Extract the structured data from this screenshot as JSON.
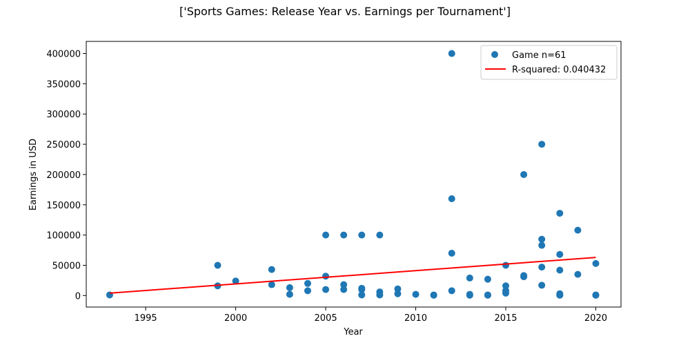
{
  "chart_data": {
    "type": "scatter",
    "title": "['Sports Games: Release Year vs. Earnings per Tournament']",
    "xlabel": "Year",
    "ylabel": "Earnings in USD",
    "xlim": [
      1991.7,
      2021.4
    ],
    "ylim": [
      -19000,
      420000
    ],
    "xticks": [
      1995,
      2000,
      2005,
      2010,
      2015,
      2020
    ],
    "yticks": [
      0,
      50000,
      100000,
      150000,
      200000,
      250000,
      300000,
      350000,
      400000
    ],
    "grid": false,
    "legend_position": "top-right",
    "point_color": "#1f77b4",
    "line_color": "#ff0000",
    "series": [
      {
        "name": "Game n=61",
        "kind": "scatter",
        "points": [
          [
            1993,
            1000
          ],
          [
            1999,
            50000
          ],
          [
            1999,
            16000
          ],
          [
            2000,
            24000
          ],
          [
            2002,
            43000
          ],
          [
            2002,
            18000
          ],
          [
            2003,
            13000
          ],
          [
            2003,
            2000
          ],
          [
            2004,
            20000
          ],
          [
            2004,
            8000
          ],
          [
            2005,
            100000
          ],
          [
            2005,
            32000
          ],
          [
            2005,
            10000
          ],
          [
            2006,
            100000
          ],
          [
            2006,
            18000
          ],
          [
            2006,
            10000
          ],
          [
            2007,
            100000
          ],
          [
            2007,
            12000
          ],
          [
            2007,
            10000
          ],
          [
            2007,
            1000
          ],
          [
            2008,
            100000
          ],
          [
            2008,
            6000
          ],
          [
            2008,
            1000
          ],
          [
            2009,
            11000
          ],
          [
            2009,
            3000
          ],
          [
            2010,
            2000
          ],
          [
            2011,
            1000
          ],
          [
            2011,
            500
          ],
          [
            2012,
            400000
          ],
          [
            2012,
            160000
          ],
          [
            2012,
            70000
          ],
          [
            2012,
            8000
          ],
          [
            2013,
            29000
          ],
          [
            2013,
            2000
          ],
          [
            2013,
            500
          ],
          [
            2014,
            27000
          ],
          [
            2014,
            1000
          ],
          [
            2014,
            500
          ],
          [
            2015,
            50000
          ],
          [
            2015,
            16000
          ],
          [
            2015,
            8000
          ],
          [
            2015,
            4000
          ],
          [
            2016,
            200000
          ],
          [
            2016,
            33000
          ],
          [
            2016,
            31000
          ],
          [
            2017,
            250000
          ],
          [
            2017,
            93000
          ],
          [
            2017,
            83000
          ],
          [
            2017,
            47000
          ],
          [
            2017,
            17000
          ],
          [
            2018,
            136000
          ],
          [
            2018,
            68000
          ],
          [
            2018,
            42000
          ],
          [
            2018,
            3000
          ],
          [
            2018,
            1000
          ],
          [
            2018,
            500
          ],
          [
            2019,
            108000
          ],
          [
            2019,
            35000
          ],
          [
            2020,
            53000
          ],
          [
            2020,
            1000
          ],
          [
            2020,
            500
          ]
        ]
      },
      {
        "name": "R-squared: 0.040432",
        "kind": "line",
        "points": [
          [
            1993,
            4000
          ],
          [
            2020,
            63000
          ]
        ]
      }
    ]
  }
}
